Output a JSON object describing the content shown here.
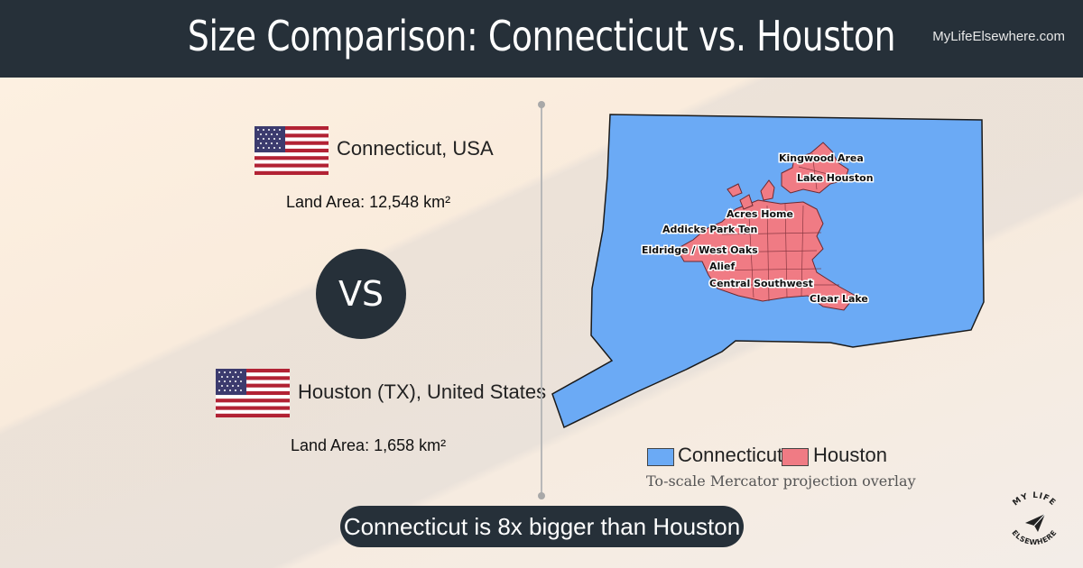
{
  "header": {
    "title": "Size Comparison: Connecticut vs. Houston",
    "site": "MyLifeElsewhere.com"
  },
  "left_panel": {
    "place_a": {
      "name": "Connecticut, USA",
      "land_area": "Land Area: 12,548 km²",
      "flag": "usa-flag"
    },
    "vs_label": "VS",
    "place_b": {
      "name": "Houston (TX), United States",
      "land_area": "Land Area: 1,658 km²",
      "flag": "usa-flag"
    }
  },
  "map": {
    "labels": [
      "Kingwood Area",
      "Lake Houston",
      "Acres Home",
      "Addicks Park Ten",
      "Eldridge / West Oaks",
      "Alief",
      "Central Southwest",
      "Clear Lake"
    ],
    "colors": {
      "connecticut": "#6baaf5",
      "houston": "#f07b84",
      "outline": "#1a1a1a"
    }
  },
  "legend": {
    "items": [
      {
        "label": "Connecticut",
        "color": "#6baaf5"
      },
      {
        "label": "Houston",
        "color": "#f07b84"
      }
    ],
    "caption": "To-scale Mercator projection overlay"
  },
  "verdict": "Connecticut is 8x bigger than Houston",
  "logo": {
    "text_top": "MY LIFE",
    "text_bottom": "ELSEWHERE",
    "icon": "paper-plane-icon"
  }
}
